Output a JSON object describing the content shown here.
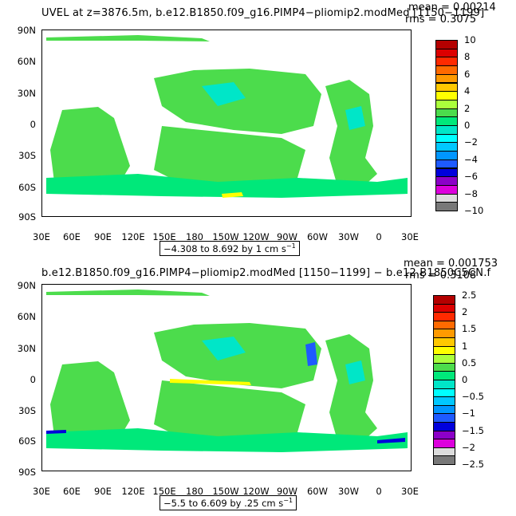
{
  "panels": [
    {
      "title": "UVEL at z=3876.5m, b.e12.B1850.f09_g16.PIMP4−pliomip2.modMed [1150−1199]",
      "mean_label": "mean = 0.00214",
      "rms_label": "rms = 0.3075",
      "range_prefix": "−4.308 to 8.692 by 1 cm s",
      "range_sup": "−1",
      "colorbar": {
        "labels": [
          "10",
          "8",
          "6",
          "4",
          "2",
          "0",
          "−2",
          "−4",
          "−6",
          "−8",
          "−10"
        ],
        "colors": [
          "#b40000",
          "#dc0000",
          "#ff2a00",
          "#ff6a00",
          "#ff9a00",
          "#ffc800",
          "#ffff00",
          "#aaff3c",
          "#4cdc4c",
          "#00e87a",
          "#00e6c8",
          "#00ffff",
          "#00c8ff",
          "#0096ff",
          "#1e5aff",
          "#0000dc",
          "#8c00c8",
          "#dc00dc",
          "#dcdcdc",
          "#787878"
        ]
      }
    },
    {
      "title": "b.e12.B1850.f09_g16.PIMP4−pliomip2.modMed [1150−1199] − b.e12.B1850C5CN.f",
      "mean_label": "mean = 0.001753",
      "rms_label": "rms = 0.3108",
      "range_prefix": "−5.5 to 6.609 by .25 cm s",
      "range_sup": "−1",
      "colorbar": {
        "labels": [
          "2.5",
          "2",
          "1.5",
          "1",
          "0.5",
          "0",
          "−0.5",
          "−1",
          "−1.5",
          "−2",
          "−2.5"
        ],
        "colors": [
          "#b40000",
          "#dc0000",
          "#ff2a00",
          "#ff6a00",
          "#ff9a00",
          "#ffc800",
          "#ffff00",
          "#aaff3c",
          "#4cdc4c",
          "#00e87a",
          "#00e6c8",
          "#00ffff",
          "#00c8ff",
          "#0096ff",
          "#1e5aff",
          "#0000dc",
          "#8c00c8",
          "#dc00dc",
          "#dcdcdc",
          "#787878"
        ]
      }
    }
  ],
  "axes": {
    "y_ticks": [
      "90N",
      "60N",
      "30N",
      "0",
      "30S",
      "60S",
      "90S"
    ],
    "x_ticks": [
      "30E",
      "60E",
      "90E",
      "120E",
      "150E",
      "180",
      "150W",
      "120W",
      "90W",
      "60W",
      "30W",
      "0",
      "30E"
    ]
  },
  "map_colors": {
    "ocean_main": "#4cdc4c",
    "ocean_alt": "#00e87a",
    "ocean_cyan": "#00e6c8",
    "accent_yellow": "#ffff00",
    "accent_blue": "#1e5aff",
    "accent_dark": "#0000dc"
  }
}
